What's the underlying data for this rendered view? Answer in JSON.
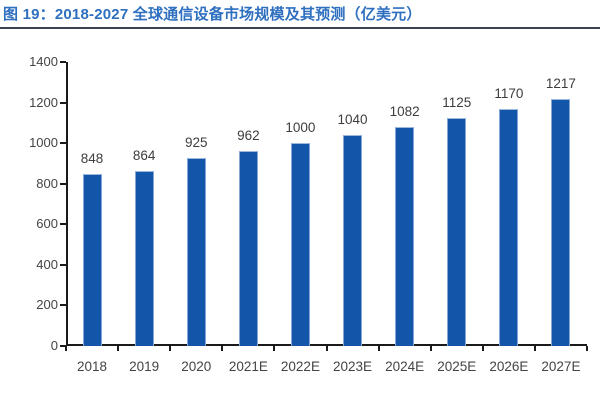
{
  "header": {
    "title": "图 19：2018-2027 全球通信设备市场规模及其预测（亿美元）"
  },
  "chart_data": {
    "type": "bar",
    "title": "图 19：2018-2027 全球通信设备市场规模及其预测（亿美元）",
    "categories": [
      "2018",
      "2019",
      "2020",
      "2021E",
      "2022E",
      "2023E",
      "2024E",
      "2025E",
      "2026E",
      "2027E"
    ],
    "values": [
      848,
      864,
      925,
      962,
      1000,
      1040,
      1082,
      1125,
      1170,
      1217
    ],
    "xlabel": "",
    "ylabel": "",
    "ylim": [
      0,
      1400
    ],
    "yticks": [
      0,
      200,
      400,
      600,
      800,
      1000,
      1200,
      1400
    ],
    "grid": false,
    "legend": "none",
    "data_labels": true,
    "colors": {
      "bar": "#1355a9",
      "title": "#2e6fc0",
      "caption_rule": "#39424e",
      "axis": "#1a1a1a",
      "tick_text": "#444444",
      "value_text": "#3d3d3d"
    }
  }
}
